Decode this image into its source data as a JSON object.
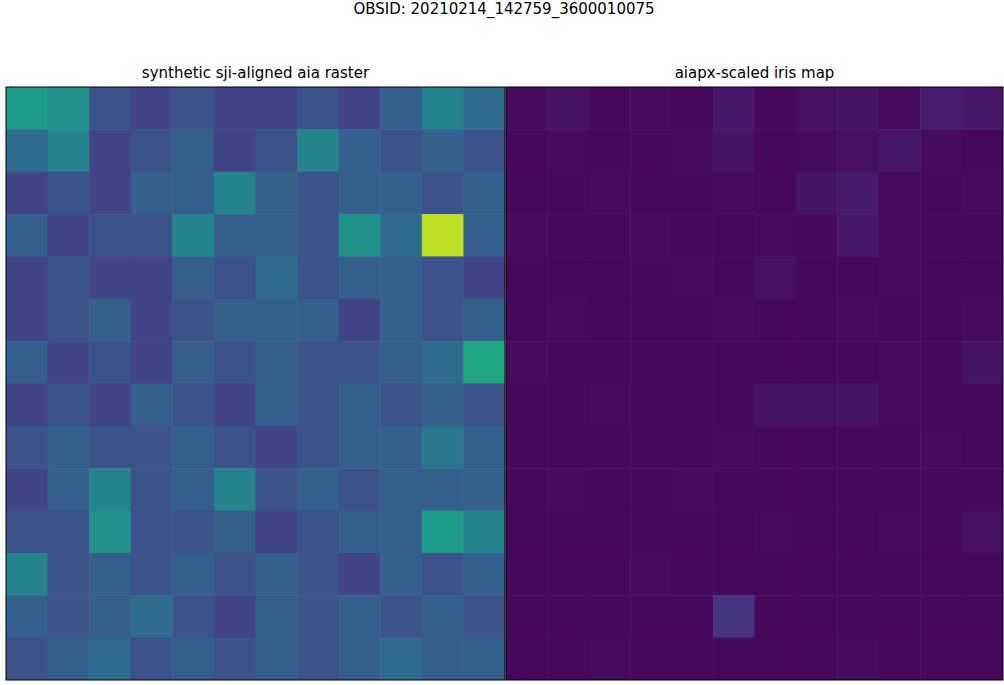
{
  "title": "OBSID: 20210214_142759_3600010075",
  "chart_data": [
    {
      "type": "heatmap",
      "title": "synthetic sji-aligned aia raster",
      "tick_labels": false,
      "zlim": [
        0,
        1
      ],
      "z": [
        [
          0.55,
          0.5,
          0.25,
          0.2,
          0.25,
          0.2,
          0.2,
          0.25,
          0.2,
          0.3,
          0.45,
          0.35
        ],
        [
          0.35,
          0.45,
          0.2,
          0.25,
          0.3,
          0.2,
          0.25,
          0.45,
          0.3,
          0.25,
          0.3,
          0.25
        ],
        [
          0.2,
          0.25,
          0.2,
          0.3,
          0.3,
          0.45,
          0.3,
          0.25,
          0.3,
          0.3,
          0.25,
          0.3
        ],
        [
          0.3,
          0.2,
          0.25,
          0.25,
          0.45,
          0.3,
          0.3,
          0.25,
          0.5,
          0.35,
          0.9,
          0.3
        ],
        [
          0.2,
          0.25,
          0.2,
          0.2,
          0.3,
          0.25,
          0.35,
          0.25,
          0.3,
          0.3,
          0.25,
          0.2
        ],
        [
          0.2,
          0.25,
          0.3,
          0.2,
          0.25,
          0.3,
          0.3,
          0.3,
          0.2,
          0.3,
          0.25,
          0.3
        ],
        [
          0.3,
          0.2,
          0.25,
          0.2,
          0.3,
          0.25,
          0.3,
          0.25,
          0.25,
          0.3,
          0.35,
          0.6
        ],
        [
          0.2,
          0.25,
          0.2,
          0.3,
          0.25,
          0.2,
          0.3,
          0.25,
          0.3,
          0.25,
          0.3,
          0.25
        ],
        [
          0.25,
          0.3,
          0.25,
          0.25,
          0.3,
          0.25,
          0.2,
          0.25,
          0.3,
          0.3,
          0.4,
          0.3
        ],
        [
          0.2,
          0.3,
          0.45,
          0.25,
          0.3,
          0.45,
          0.25,
          0.3,
          0.25,
          0.3,
          0.3,
          0.3
        ],
        [
          0.25,
          0.25,
          0.5,
          0.25,
          0.25,
          0.3,
          0.2,
          0.25,
          0.3,
          0.3,
          0.55,
          0.45
        ],
        [
          0.45,
          0.25,
          0.3,
          0.25,
          0.3,
          0.25,
          0.3,
          0.25,
          0.2,
          0.3,
          0.25,
          0.3
        ],
        [
          0.3,
          0.25,
          0.3,
          0.35,
          0.25,
          0.2,
          0.3,
          0.25,
          0.3,
          0.25,
          0.3,
          0.25
        ],
        [
          0.25,
          0.3,
          0.35,
          0.25,
          0.3,
          0.25,
          0.3,
          0.25,
          0.3,
          0.35,
          0.3,
          0.3
        ]
      ]
    },
    {
      "type": "heatmap",
      "title": "aiapx-scaled iris map",
      "tick_labels": false,
      "zlim": [
        0,
        1
      ],
      "z": [
        [
          0.03,
          0.05,
          0.02,
          0.03,
          0.02,
          0.06,
          0.02,
          0.04,
          0.05,
          0.03,
          0.08,
          0.06
        ],
        [
          0.02,
          0.03,
          0.02,
          0.02,
          0.03,
          0.05,
          0.02,
          0.03,
          0.04,
          0.06,
          0.03,
          0.02
        ],
        [
          0.02,
          0.02,
          0.03,
          0.02,
          0.02,
          0.03,
          0.02,
          0.05,
          0.07,
          0.03,
          0.02,
          0.03
        ],
        [
          0.03,
          0.02,
          0.02,
          0.03,
          0.02,
          0.02,
          0.03,
          0.02,
          0.06,
          0.03,
          0.02,
          0.02
        ],
        [
          0.02,
          0.02,
          0.02,
          0.02,
          0.03,
          0.02,
          0.04,
          0.02,
          0.02,
          0.03,
          0.02,
          0.02
        ],
        [
          0.02,
          0.03,
          0.02,
          0.02,
          0.02,
          0.03,
          0.02,
          0.02,
          0.03,
          0.02,
          0.02,
          0.03
        ],
        [
          0.03,
          0.02,
          0.02,
          0.02,
          0.02,
          0.02,
          0.02,
          0.02,
          0.02,
          0.03,
          0.02,
          0.05
        ],
        [
          0.02,
          0.02,
          0.03,
          0.02,
          0.02,
          0.02,
          0.05,
          0.05,
          0.05,
          0.03,
          0.02,
          0.02
        ],
        [
          0.02,
          0.02,
          0.02,
          0.02,
          0.02,
          0.03,
          0.02,
          0.02,
          0.02,
          0.02,
          0.03,
          0.02
        ],
        [
          0.02,
          0.03,
          0.02,
          0.02,
          0.03,
          0.02,
          0.02,
          0.02,
          0.02,
          0.02,
          0.02,
          0.02
        ],
        [
          0.02,
          0.02,
          0.02,
          0.02,
          0.02,
          0.02,
          0.03,
          0.02,
          0.02,
          0.03,
          0.02,
          0.04
        ],
        [
          0.02,
          0.02,
          0.02,
          0.03,
          0.02,
          0.02,
          0.02,
          0.02,
          0.02,
          0.02,
          0.02,
          0.02
        ],
        [
          0.02,
          0.02,
          0.02,
          0.02,
          0.02,
          0.15,
          0.02,
          0.02,
          0.02,
          0.02,
          0.02,
          0.02
        ],
        [
          0.02,
          0.02,
          0.03,
          0.02,
          0.02,
          0.02,
          0.02,
          0.02,
          0.03,
          0.02,
          0.02,
          0.02
        ]
      ]
    }
  ]
}
